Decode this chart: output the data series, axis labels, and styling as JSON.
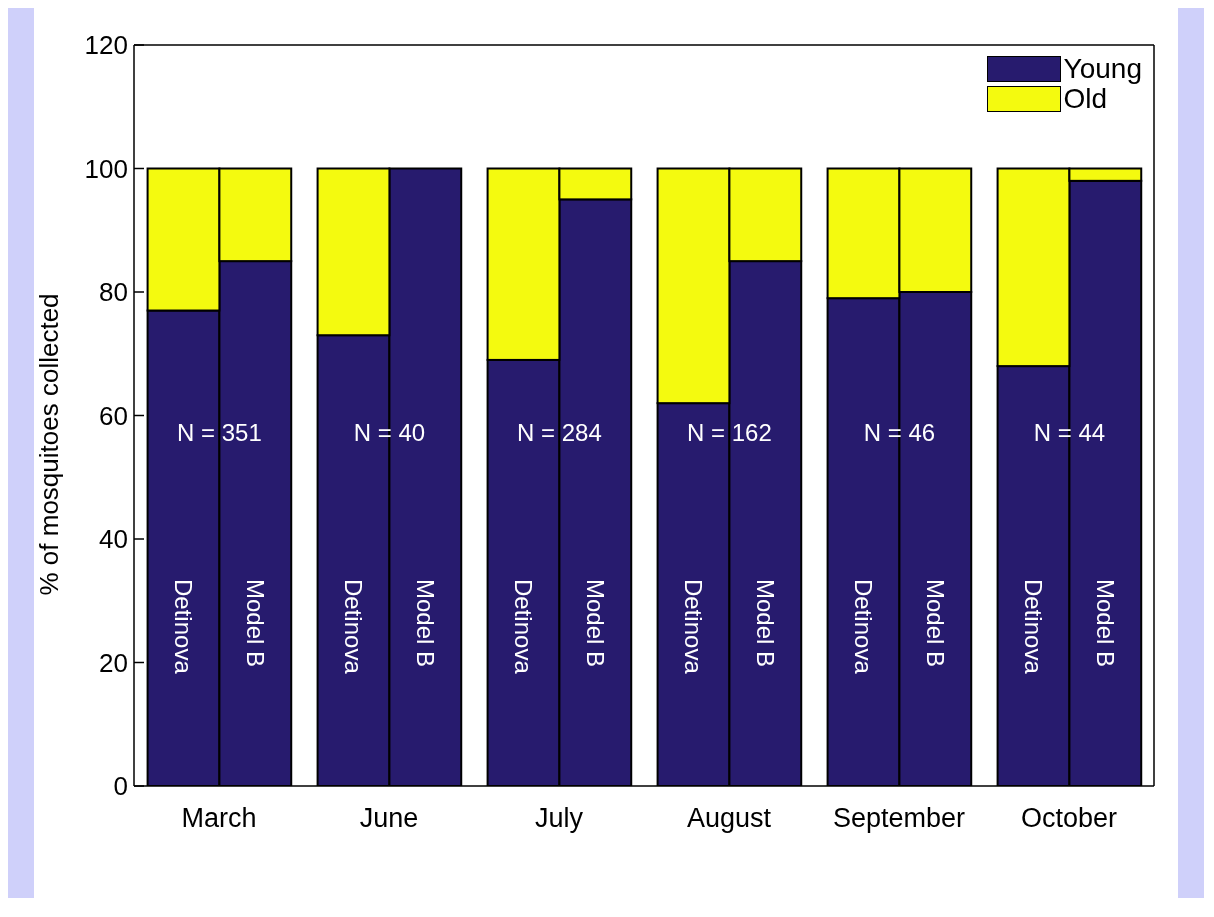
{
  "chart_data": {
    "type": "bar",
    "stacked": true,
    "ylabel": "% of mosquitoes collected",
    "categories": [
      "Detinova",
      "Model B",
      "Detinova",
      "Model B",
      "Detinova",
      "Model B",
      "Detinova",
      "Model B",
      "Detinova",
      "Model B",
      "Detinova",
      "Model B"
    ],
    "series": [
      {
        "name": "Young",
        "color": "#271b6e",
        "values": [
          77,
          85,
          73,
          100,
          69,
          95,
          62,
          85,
          79,
          80,
          68,
          98
        ]
      },
      {
        "name": "Old",
        "color": "#f4fa0f",
        "values": [
          23,
          15,
          27,
          0,
          31,
          5,
          38,
          15,
          21,
          20,
          32,
          2
        ]
      }
    ],
    "ylim": [
      0,
      120
    ],
    "yticks": [
      0,
      20,
      40,
      60,
      80,
      100,
      120
    ],
    "grid": false,
    "legend": "top right",
    "annotations": [
      "March",
      "June",
      "July",
      "August",
      "September",
      "October",
      "N = 351",
      "N = 40",
      "N = 284",
      "N = 162",
      "N = 46",
      "N = 44"
    ]
  }
}
